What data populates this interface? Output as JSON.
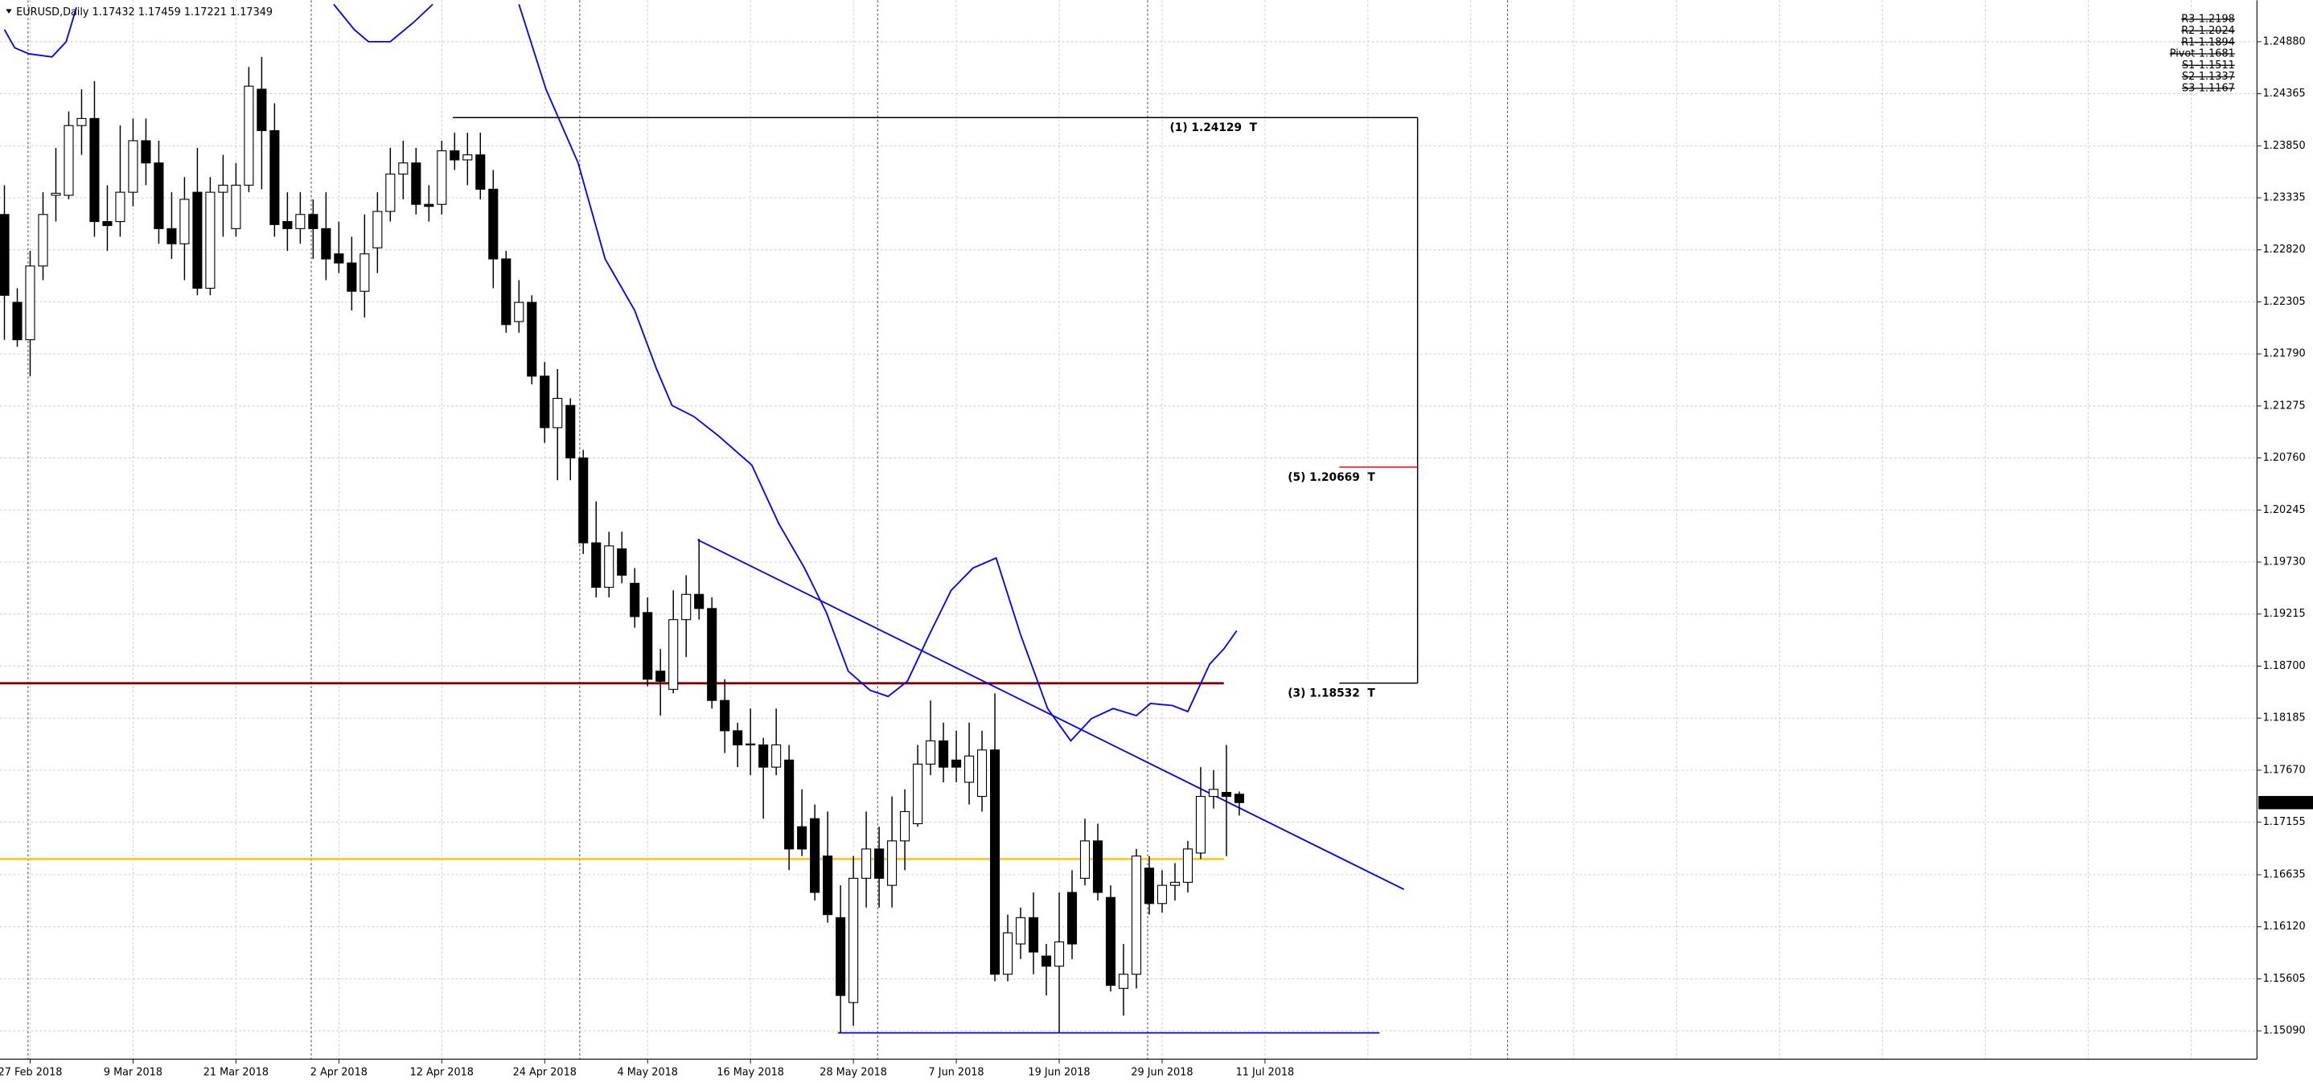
{
  "chart_data": {
    "type": "candlestick",
    "symbol": "EURUSD,Daily",
    "categories": [
      null,
      null,
      "27 Feb 2018",
      null,
      null,
      null,
      null,
      null,
      null,
      null,
      "9 Mar 2018",
      null,
      null,
      null,
      null,
      null,
      null,
      null,
      "21 Mar 2018",
      null,
      null,
      null,
      null,
      null,
      null,
      null,
      "2 Apr 2018",
      null,
      null,
      null,
      null,
      null,
      null,
      null,
      "12 Apr 2018",
      null,
      null,
      null,
      null,
      null,
      null,
      null,
      "24 Apr 2018",
      null,
      null,
      null,
      null,
      null,
      null,
      null,
      "4 May 2018",
      null,
      null,
      null,
      null,
      null,
      null,
      null,
      "16 May 2018",
      null,
      null,
      null,
      null,
      null,
      null,
      null,
      "28 May 2018",
      null,
      null,
      null,
      null,
      null,
      null,
      null,
      "7 Jun 2018",
      null,
      null,
      null,
      null,
      null,
      null,
      null,
      "19 Jun 2018",
      null,
      null,
      null,
      null,
      null,
      null,
      null,
      "29 Jun 2018",
      null,
      null,
      null,
      null,
      null,
      null,
      null,
      "11 Jul 2018"
    ],
    "open": [
      1.2317,
      1.223,
      1.2193,
      1.2266,
      1.2336,
      1.2336,
      1.2405,
      1.2412,
      1.231,
      1.231,
      1.2339,
      1.239,
      1.2368,
      1.2303,
      1.2288,
      1.2339,
      1.2244,
      1.2339,
      1.2303,
      1.2346,
      1.2441,
      1.24,
      1.231,
      1.2303,
      1.2317,
      1.2303,
      1.2278,
      1.2269,
      1.2241,
      1.2284,
      1.232,
      1.2357,
      1.2368,
      1.2327,
      1.2327,
      1.238,
      1.2371,
      1.2376,
      1.2342,
      1.2273,
      1.2211,
      1.223,
      1.2157,
      1.2106,
      1.2128,
      1.2076,
      1.1992,
      1.1948,
      1.1986,
      1.1952,
      1.1923,
      1.1865,
      1.1847,
      1.1916,
      1.1941,
      1.1927,
      1.1836,
      1.1806,
      1.1792,
      1.1792,
      1.177,
      1.1777,
      1.1711,
      1.1719,
      1.1682,
      1.1621,
      1.1537,
      1.166,
      1.1689,
      1.1653,
      1.1697,
      1.1714,
      1.1773,
      1.1796,
      1.1777,
      1.1755,
      1.1741,
      1.1787,
      1.1565,
      1.1595,
      1.1621,
      1.1583,
      1.1573,
      1.1646,
      1.166,
      1.1697,
      1.1641,
      1.1551,
      1.1565,
      1.167,
      1.1635,
      1.1653,
      1.1656,
      1.1685,
      1.1741,
      1.1745,
      1.17432,
      null,
      null
    ],
    "high": [
      1.2346,
      1.2244,
      1.2281,
      1.2339,
      1.2383,
      1.2419,
      1.2441,
      1.2449,
      1.2346,
      1.2405,
      1.2412,
      1.2412,
      1.239,
      1.2339,
      1.2354,
      1.2383,
      1.2354,
      1.2376,
      1.2368,
      1.2463,
      1.2473,
      1.2427,
      1.2339,
      1.2339,
      1.2332,
      1.2339,
      1.231,
      1.2295,
      1.2317,
      1.2339,
      1.2383,
      1.239,
      1.2383,
      1.2346,
      1.239,
      1.2398,
      1.2398,
      1.2398,
      1.2361,
      1.2281,
      1.2252,
      1.2237,
      1.2171,
      1.2164,
      1.2135,
      1.2084,
      1.2033,
      1.2003,
      1.2003,
      1.1967,
      1.1938,
      1.1887,
      1.1945,
      1.196,
      1.1996,
      1.1938,
      1.1857,
      1.1814,
      1.1828,
      1.1799,
      1.1828,
      1.1792,
      1.1748,
      1.1733,
      1.1726,
      1.1653,
      1.1682,
      1.1726,
      1.1711,
      1.1741,
      1.1748,
      1.1792,
      1.1836,
      1.1814,
      1.1806,
      1.1814,
      1.1806,
      1.1843,
      1.1624,
      1.1631,
      1.1646,
      1.1595,
      1.1646,
      1.1668,
      1.1719,
      1.1714,
      1.1653,
      1.1595,
      1.1689,
      1.1682,
      1.1668,
      1.1675,
      1.1697,
      1.177,
      1.1767,
      1.1792,
      1.17459,
      null,
      null
    ],
    "low": [
      1.2193,
      1.2186,
      1.2157,
      1.2252,
      1.231,
      1.2332,
      1.2376,
      1.2295,
      1.2281,
      1.2295,
      1.2325,
      1.2346,
      1.2288,
      1.2273,
      1.2252,
      1.2237,
      1.2237,
      1.2295,
      1.2295,
      1.2339,
      1.2342,
      1.2295,
      1.2281,
      1.2288,
      1.2273,
      1.2252,
      1.2259,
      1.2222,
      1.2215,
      1.2259,
      1.231,
      1.2332,
      1.2317,
      1.231,
      1.2317,
      1.2361,
      1.2346,
      1.2332,
      1.2244,
      1.22,
      1.22,
      1.2149,
      1.2091,
      1.2054,
      1.2054,
      1.1981,
      1.1938,
      1.1938,
      1.1952,
      1.1908,
      1.185,
      1.1821,
      1.1843,
      1.1879,
      1.1916,
      1.1828,
      1.1784,
      1.177,
      1.1762,
      1.1719,
      1.1762,
      1.1668,
      1.1682,
      1.1638,
      1.1616,
      1.1507,
      1.1514,
      1.1631,
      1.1631,
      1.1631,
      1.1668,
      1.1711,
      1.1762,
      1.1755,
      1.1755,
      1.1733,
      1.1726,
      1.1558,
      1.1558,
      1.158,
      1.1565,
      1.1544,
      1.1507,
      1.158,
      1.1653,
      1.1638,
      1.1548,
      1.1524,
      1.1551,
      1.1624,
      1.1626,
      1.1638,
      1.1646,
      1.1679,
      1.1729,
      1.1682,
      1.17221,
      null,
      null
    ],
    "close": [
      1.2237,
      1.2193,
      1.2266,
      1.2317,
      1.2338,
      1.2405,
      1.2412,
      1.231,
      1.2306,
      1.2339,
      1.239,
      1.2368,
      1.2303,
      1.2288,
      1.2332,
      1.2244,
      1.2339,
      1.2346,
      1.2346,
      1.2444,
      1.24,
      1.2307,
      1.2303,
      1.2317,
      1.2303,
      1.2273,
      1.2269,
      1.2241,
      1.2278,
      1.232,
      1.2357,
      1.2368,
      1.2327,
      1.2325,
      1.238,
      1.2371,
      1.2376,
      1.2342,
      1.2273,
      1.2208,
      1.223,
      1.2157,
      1.2106,
      1.2135,
      1.2076,
      1.1992,
      1.1948,
      1.1989,
      1.196,
      1.1919,
      1.1857,
      1.1855,
      1.1916,
      1.1941,
      1.1927,
      1.1836,
      1.1806,
      1.1792,
      1.1793,
      1.177,
      1.1792,
      1.1689,
      1.1689,
      1.1646,
      1.1624,
      1.1544,
      1.166,
      1.1689,
      1.166,
      1.1697,
      1.1726,
      1.1773,
      1.1796,
      1.177,
      1.177,
      1.1781,
      1.1787,
      1.1565,
      1.1606,
      1.1621,
      1.1587,
      1.1573,
      1.1597,
      1.1595,
      1.1697,
      1.1646,
      1.1554,
      1.1565,
      1.1682,
      1.1635,
      1.1653,
      1.1656,
      1.1689,
      1.1741,
      1.1748,
      1.1741,
      1.17349,
      null,
      null
    ],
    "up_color": "#ffffff",
    "down_color": "#000000",
    "ylim": [
      1.1481,
      1.2529
    ],
    "yticks": [
      {
        "value": 1.2488,
        "label": "1.24880"
      },
      1.24365,
      {
        "value": 1.2385,
        "label": "1.23850"
      },
      1.23335,
      {
        "value": 1.2282,
        "label": "1.22820"
      },
      1.22305,
      {
        "value": 1.2179,
        "label": "1.21790"
      },
      1.21275,
      {
        "value": 1.2076,
        "label": "1.20760"
      },
      1.20245,
      {
        "value": 1.1973,
        "label": "1.19730"
      },
      1.19215,
      {
        "value": 1.187,
        "label": "1.18700"
      },
      1.18185,
      {
        "value": 1.1767,
        "label": "1.17670"
      },
      1.17155,
      1.16635,
      {
        "value": 1.1612,
        "label": "1.16120"
      },
      1.15605,
      {
        "value": 1.1509,
        "label": "1.15090"
      }
    ],
    "grid": true,
    "moving_average": {
      "color": "#0000ff",
      "x": [
        0,
        0.8,
        1.9,
        3.7,
        4.8,
        5.6,
        null,
        25.6,
        27.2,
        28.3,
        30,
        31.8,
        33.3,
        null,
        40,
        42.1,
        44.6,
        46.7,
        49,
        50.7,
        51.9,
        53.6,
        55.5,
        58.1,
        60.2,
        62.2,
        63.9,
        65.6,
        67.3,
        68.7,
        70.2,
        71.9,
        73.6,
        75.3,
        77.1,
        79,
        81.1,
        82.9,
        84.5,
        86.2,
        88,
        89.1,
        90.8,
        92,
        93.7,
        94.8,
        95.8
      ],
      "values": [
        1.25,
        1.2482,
        1.2476,
        1.2473,
        1.2488,
        1.2522,
        null,
        1.2525,
        1.25,
        1.2488,
        1.2488,
        1.2507,
        1.2525,
        null,
        1.2525,
        1.2441,
        1.2368,
        1.2273,
        1.2222,
        1.2164,
        1.2128,
        1.2117,
        1.2098,
        1.2069,
        1.2011,
        1.1967,
        1.1923,
        1.1865,
        1.1846,
        1.184,
        1.1855,
        1.1901,
        1.1945,
        1.1967,
        1.1977,
        1.1901,
        1.1828,
        1.1796,
        1.1818,
        1.1828,
        1.1821,
        1.1833,
        1.1831,
        1.1825,
        1.1872,
        1.1887,
        1.1905
      ]
    },
    "lines": [
      {
        "color": "#800000",
        "width": 1.6,
        "x": [
          -0.4,
          94.8
        ],
        "values": [
          1.1853,
          1.1853
        ]
      },
      {
        "color": "#ffc000",
        "width": 1.3,
        "x": [
          -0.4,
          94.8
        ],
        "values": [
          1.1679,
          1.1679
        ]
      },
      {
        "color": "#0000ff",
        "width": 1,
        "x": [
          64.8,
          106.9
        ],
        "values": [
          1.1507,
          1.1507
        ]
      },
      {
        "color": "#0000ff",
        "width": 1,
        "x": [
          53.9,
          108.8
        ],
        "values": [
          1.1995,
          1.1649
        ]
      }
    ],
    "targets": [
      {
        "text": "(1) 1.24129  T",
        "value": 1.24129,
        "color": "#000000"
      },
      {
        "text": "(5) 1.20669  T",
        "value": 1.20669,
        "color": "#ff0000"
      },
      {
        "text": "(3) 1.18532  T",
        "value": 1.18532,
        "color": "#00c000"
      }
    ],
    "pivots": [
      {
        "text": "R3-1.2198",
        "color": "#8b0000"
      },
      {
        "text": "R2-1.2024",
        "color": "#c00020"
      },
      {
        "text": "R1-1.1894",
        "color": "#ff0000"
      },
      {
        "text": "Pivot-1.1681",
        "color": "#ff4500"
      },
      {
        "text": "S1-1.1511",
        "color": "#10b010"
      },
      {
        "text": "S2-1.1337",
        "color": "#008000"
      },
      {
        "text": "S3-1.1167",
        "color": "#006400"
      }
    ]
  }
}
